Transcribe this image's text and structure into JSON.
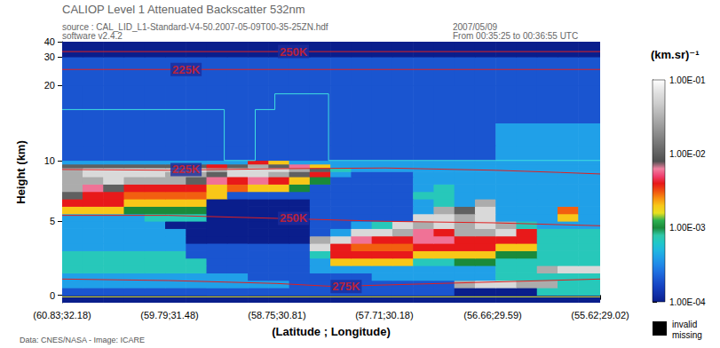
{
  "chart_data": {
    "type": "heatmap",
    "title": "CALIOP Level 1 Attenuated Backscatter 532nm",
    "header": [
      "source : CAL_LID_L1-Standard-V4-50.2007-05-09T00-35-25ZN.hdf",
      "software v2.4.2"
    ],
    "header_right": [
      "2007/05/09",
      "From 00:35:25 to 00:36:55 UTC"
    ],
    "footer": "Data: CNES/NASA - Image: ICARE",
    "x_label": "(Latitude ; Longitude)",
    "y_label": "Height (km)",
    "xlim": [
      60.83,
      55.62
    ],
    "xticks": [
      {
        "value": 60.83,
        "label": "(60.83;32.18)"
      },
      {
        "value": 59.79,
        "label": "(59.79;31.48)"
      },
      {
        "value": 58.75,
        "label": "(58.75;30.81)"
      },
      {
        "value": 57.71,
        "label": "(57.71;30.18)"
      },
      {
        "value": 56.66,
        "label": "(56.66;29.59)"
      },
      {
        "value": 55.62,
        "label": "(55.62;29.02)"
      }
    ],
    "ylim": [
      -0.5,
      40
    ],
    "yticks": [
      0,
      5,
      10,
      20,
      30,
      40
    ],
    "x_edges": [
      60.83,
      60.63,
      60.43,
      60.23,
      60.03,
      59.83,
      59.63,
      59.43,
      59.23,
      59.03,
      58.83,
      58.63,
      58.43,
      58.23,
      58.03,
      57.83,
      57.63,
      57.43,
      57.23,
      57.03,
      56.83,
      56.63,
      56.43,
      56.23,
      56.03,
      55.83,
      55.62
    ],
    "y_edges": [
      -0.5,
      0,
      0.5,
      1,
      1.5,
      2,
      2.5,
      3,
      3.5,
      4,
      4.5,
      5,
      5.5,
      6,
      6.5,
      7,
      7.5,
      8,
      8.5,
      9,
      9.5,
      10,
      12,
      15,
      20,
      30,
      40
    ],
    "values": [
      [
        0.0001,
        0.0001,
        0.0001,
        0.0001,
        0.0001,
        0.0001,
        0.0001,
        0.0001,
        0.0001,
        0.0001,
        0.0001,
        0.0001,
        0.0001,
        0.0001,
        0.0001,
        0.0001,
        0.0001,
        0.0001,
        0.0001,
        0.0001,
        0.0001,
        0.0001,
        0.0001,
        0.0001,
        0.0001,
        0.0001
      ],
      [
        0.0002,
        0.0002,
        0.0002,
        0.0002,
        0.0002,
        0.0002,
        0.0002,
        0.0002,
        0.0002,
        0.0002,
        0.0002,
        0.0002,
        0.0002,
        0.0002,
        0.0002,
        0.0002,
        0.0002,
        0.0002,
        0.0002,
        0.0001,
        0.0001,
        0.0001,
        0.0001,
        0.0007,
        0.0007,
        0.0007
      ],
      [
        0.0004,
        0.0004,
        0.0004,
        0.0004,
        0.0004,
        0.0004,
        0.0004,
        0.0004,
        0.0004,
        0.0004,
        0.0004,
        0.0002,
        0.0002,
        0.0002,
        0.0002,
        0.0002,
        0.0002,
        0.0002,
        0.0002,
        0.03,
        0.06,
        0.06,
        0.03,
        0.03,
        0.0007,
        0.0007
      ],
      [
        0.0004,
        0.0004,
        0.0004,
        0.0004,
        0.0004,
        0.0004,
        0.0004,
        0.0004,
        0.0004,
        0.0002,
        0.0002,
        0.0002,
        0.0002,
        0.0002,
        0.0002,
        0.0004,
        0.0004,
        0.0004,
        0.0004,
        0.0004,
        0.0004,
        0.0007,
        0.0007,
        0.0007,
        0.0007,
        0.0007
      ],
      [
        0.0007,
        0.0007,
        0.0007,
        0.0007,
        0.0007,
        0.0007,
        0.0007,
        0.0002,
        0.0002,
        0.0002,
        0.0002,
        0.0002,
        0.0004,
        0.0004,
        0.0004,
        0.0004,
        0.0004,
        0.0004,
        0.0004,
        0.0004,
        0.0004,
        0.0007,
        0.0007,
        0.03,
        0.06,
        0.06
      ],
      [
        0.0007,
        0.0007,
        0.0007,
        0.0007,
        0.0007,
        0.0007,
        0.0007,
        0.0002,
        0.0002,
        0.0002,
        0.0002,
        0.0002,
        0.0004,
        0.002,
        0.002,
        0.002,
        0.002,
        0.0007,
        0.0007,
        0.001,
        0.001,
        0.0007,
        0.0007,
        0.0007,
        0.0007,
        0.0007
      ],
      [
        0.0007,
        0.0007,
        0.0007,
        0.0007,
        0.0007,
        0.0007,
        0.0002,
        0.0002,
        0.0002,
        0.0002,
        0.0002,
        0.0002,
        0.0007,
        0.004,
        0.004,
        0.004,
        0.004,
        0.002,
        0.002,
        0.002,
        0.002,
        0.001,
        0.001,
        0.0007,
        0.0007,
        0.0007
      ],
      [
        0.0004,
        0.0004,
        0.0004,
        0.0004,
        0.0004,
        0.0004,
        0.0002,
        0.0002,
        0.0002,
        0.0002,
        0.0002,
        0.0002,
        0.06,
        0.004,
        0.003,
        0.003,
        0.003,
        0.004,
        0.004,
        0.004,
        0.004,
        0.002,
        0.002,
        0.0007,
        0.0007,
        0.0007
      ],
      [
        0.0004,
        0.0004,
        0.0004,
        0.0004,
        0.0004,
        0.0004,
        0.0001,
        0.0001,
        0.0001,
        0.0001,
        0.0001,
        0.0001,
        0.03,
        0.06,
        0.006,
        0.004,
        0.004,
        0.006,
        0.006,
        0.004,
        0.004,
        0.004,
        0.004,
        0.0007,
        0.0007,
        0.0007
      ],
      [
        0.0004,
        0.0004,
        0.0004,
        0.0004,
        0.0004,
        0.0004,
        0.0001,
        0.0001,
        0.0001,
        0.0001,
        0.0001,
        0.0001,
        0.0002,
        0.0004,
        0.06,
        0.06,
        0.03,
        0.006,
        0.004,
        0.03,
        0.03,
        0.06,
        0.004,
        0.0007,
        0.0007,
        0.0007
      ],
      [
        0.0004,
        0.0004,
        0.0004,
        0.0004,
        0.0004,
        0.0001,
        0.0001,
        0.0001,
        0.0001,
        0.0001,
        0.0001,
        0.0001,
        0.0002,
        0.0002,
        0.0004,
        0.0007,
        0.06,
        0.03,
        0.06,
        0.03,
        0.06,
        0.03,
        0.0007,
        0.0004,
        0.0004,
        0.0004
      ],
      [
        0.0004,
        0.0004,
        0.0004,
        0.0004,
        0.0007,
        0.0007,
        0.0007,
        0.0001,
        0.0001,
        0.0001,
        0.0001,
        0.0001,
        0.0002,
        0.0002,
        0.0002,
        0.0002,
        0.0002,
        0.06,
        0.06,
        0.03,
        0.06,
        0.0004,
        0.0004,
        0.0004,
        0.002,
        0.0004
      ],
      [
        0.002,
        0.002,
        0.002,
        0.001,
        0.001,
        0.001,
        0.001,
        0.0001,
        0.0001,
        0.0001,
        0.0001,
        0.0001,
        0.0002,
        0.0002,
        0.0002,
        0.0002,
        0.0002,
        0.0004,
        0.03,
        0.01,
        0.06,
        0.0004,
        0.0004,
        0.0004,
        0.003,
        0.0004
      ],
      [
        0.004,
        0.004,
        0.004,
        0.002,
        0.002,
        0.002,
        0.002,
        0.0001,
        0.0001,
        0.0001,
        0.0001,
        0.0001,
        0.0002,
        0.0002,
        0.0002,
        0.0002,
        0.0002,
        0.0004,
        0.0007,
        0.0004,
        0.03,
        0.0004,
        0.0004,
        0.0004,
        0.0004,
        0.0004
      ],
      [
        0.01,
        0.004,
        0.004,
        0.003,
        0.003,
        0.003,
        0.003,
        0.002,
        0.0002,
        0.0002,
        0.0002,
        0.0002,
        0.0002,
        0.0002,
        0.0002,
        0.0002,
        0.0002,
        0.0007,
        0.0007,
        0.0004,
        0.0004,
        0.0004,
        0.0004,
        0.0004,
        0.0004,
        0.0004
      ],
      [
        0.03,
        0.006,
        0.01,
        0.004,
        0.004,
        0.004,
        0.004,
        0.002,
        0.003,
        0.002,
        0.002,
        0.001,
        0.0002,
        0.0002,
        0.0002,
        0.0002,
        0.0002,
        0.0004,
        0.0007,
        0.0004,
        0.0004,
        0.0004,
        0.0004,
        0.0004,
        0.0004,
        0.0004
      ],
      [
        0.03,
        0.03,
        0.06,
        0.03,
        0.03,
        0.03,
        0.01,
        0.006,
        0.004,
        0.006,
        0.004,
        0.002,
        0.001,
        0.0002,
        0.0002,
        0.0002,
        0.0002,
        0.0004,
        0.0004,
        0.0004,
        0.0004,
        0.0004,
        0.0004,
        0.0004,
        0.0004,
        0.0004
      ],
      [
        0.03,
        0.06,
        0.06,
        0.06,
        0.06,
        0.03,
        0.03,
        0.01,
        0.06,
        0.06,
        0.03,
        0.01,
        0.004,
        0.0004,
        0.0002,
        0.0002,
        0.0002,
        0.0004,
        0.0004,
        0.0004,
        0.0004,
        0.0004,
        0.0004,
        0.0004,
        0.0004,
        0.0004
      ],
      [
        0.03,
        0.06,
        0.06,
        0.06,
        0.06,
        0.06,
        0.06,
        0.03,
        0.06,
        0.06,
        0.06,
        0.03,
        0.01,
        0.0007,
        0.0004,
        0.0004,
        0.0004,
        0.0004,
        0.0004,
        0.0004,
        0.0004,
        0.0004,
        0.0004,
        0.0004,
        0.0004,
        0.0004
      ],
      [
        0.01,
        0.01,
        0.01,
        0.01,
        0.01,
        0.01,
        0.01,
        0.004,
        0.01,
        0.03,
        0.01,
        0.006,
        0.002,
        0.0004,
        0.0004,
        0.0004,
        0.0004,
        0.0004,
        0.0004,
        0.0004,
        0.0004,
        0.0004,
        0.0004,
        0.0004,
        0.0004,
        0.0004
      ],
      [
        0.0004,
        0.0004,
        0.0004,
        0.0004,
        0.0004,
        0.0004,
        0.0004,
        0.0004,
        0.0004,
        0.004,
        0.002,
        0.0004,
        0.0004,
        0.0004,
        0.0004,
        0.0004,
        0.0004,
        0.0004,
        0.0004,
        0.0004,
        0.0004,
        0.0004,
        0.0004,
        0.0004,
        0.0004,
        0.0004
      ],
      [
        0.0002,
        0.0002,
        0.0002,
        0.0002,
        0.0002,
        0.0002,
        0.0002,
        0.0002,
        0.0002,
        0.0002,
        0.0002,
        0.0002,
        0.0002,
        0.0002,
        0.0002,
        0.0002,
        0.0002,
        0.0002,
        0.0002,
        0.0002,
        0.0002,
        0.0004,
        0.0004,
        0.0004,
        0.0004,
        0.0004
      ],
      [
        0.0002,
        0.0002,
        0.0002,
        0.0002,
        0.0002,
        0.0002,
        0.0002,
        0.0002,
        0.0002,
        0.0002,
        0.0002,
        0.0002,
        0.0002,
        0.0002,
        0.0002,
        0.0002,
        0.0002,
        0.0002,
        0.0002,
        0.0002,
        0.0002,
        0.0004,
        0.0004,
        0.0004,
        0.0004,
        0.0004
      ],
      [
        0.0002,
        0.0002,
        0.0002,
        0.0002,
        0.0002,
        0.0002,
        0.0002,
        0.0002,
        0.0002,
        0.0002,
        0.0002,
        0.0002,
        0.0002,
        0.0002,
        0.0002,
        0.0002,
        0.0002,
        0.0002,
        0.0002,
        0.0002,
        0.0002,
        0.0002,
        0.0002,
        0.0002,
        0.0002,
        0.0002
      ],
      [
        0.0002,
        0.0002,
        0.0002,
        0.0002,
        0.0002,
        0.0002,
        0.0002,
        0.0002,
        0.0002,
        0.0002,
        0.0002,
        0.0002,
        0.0002,
        0.0002,
        0.0002,
        0.0002,
        0.0002,
        0.0002,
        0.0002,
        0.0002,
        0.0002,
        0.0002,
        0.0002,
        0.0002,
        0.0002,
        0.0002
      ],
      [
        0.0001,
        0.0001,
        0.0001,
        0.0001,
        0.0001,
        0.0001,
        0.0001,
        0.0001,
        0.0001,
        0.0001,
        0.0001,
        0.0001,
        0.0001,
        0.0001,
        0.0001,
        0.0001,
        0.0001,
        0.0001,
        0.0001,
        0.0001,
        0.0001,
        0.0001,
        0.0001,
        0.0001,
        0.0001,
        0.0001
      ]
    ],
    "colorbar": {
      "label": "(km.sr)⁻¹",
      "range": [
        0.0001,
        0.1
      ],
      "log": true,
      "ticks": [
        {
          "value": 0.1,
          "label": "1.00E-01"
        },
        {
          "value": 0.01,
          "label": "1.00E-02"
        },
        {
          "value": 0.001,
          "label": "1.00E-03"
        },
        {
          "value": 0.0001,
          "label": "1.00E-04"
        }
      ]
    },
    "missing_key": {
      "color": "#000000",
      "labels": [
        "invalid",
        "missing"
      ]
    },
    "lines": [
      {
        "color": "#e02020",
        "x": [
          60.83,
          55.62
        ],
        "y": [
          33.5,
          33.5
        ]
      },
      {
        "color": "#e02020",
        "x": [
          60.83,
          55.62
        ],
        "y": [
          25.5,
          25.5
        ]
      },
      {
        "color": "#e02020",
        "x": [
          60.83,
          59.8,
          58.75,
          57.7,
          56.66,
          56.0,
          55.62
        ],
        "y": [
          8.8,
          8.7,
          8.9,
          9.0,
          8.7,
          8.4,
          8.2
        ]
      },
      {
        "color": "#e02020",
        "x": [
          60.83,
          59.8,
          58.75,
          57.7,
          56.66,
          55.62
        ],
        "y": [
          5.4,
          5.4,
          5.2,
          5.0,
          4.9,
          4.7
        ]
      },
      {
        "color": "#e02020",
        "x": [
          60.83,
          59.8,
          58.75,
          58.2,
          57.7,
          56.66,
          55.62
        ],
        "y": [
          1.1,
          1.0,
          0.8,
          0.6,
          0.7,
          0.9,
          1.1
        ]
      },
      {
        "color": "#40e0e0",
        "x": [
          60.83,
          59.26,
          59.26,
          58.96,
          58.96,
          58.77,
          58.77,
          58.25,
          58.25,
          55.62
        ],
        "y": [
          16.8,
          16.8,
          10,
          10,
          16.8,
          16.8,
          18.9,
          18.9,
          10,
          10
        ]
      },
      {
        "color": "#f0f020",
        "x": [
          60.83,
          55.62
        ],
        "y": [
          -0.1,
          -0.1
        ]
      }
    ],
    "annotations": [
      {
        "text": "250K",
        "x": 58.59,
        "y": 33.5,
        "color": "#e02020"
      },
      {
        "text": "225K",
        "x": 59.63,
        "y": 25.5,
        "color": "#e02020"
      },
      {
        "text": "225K",
        "x": 59.63,
        "y": 8.8,
        "color": "#e02020"
      },
      {
        "text": "250K",
        "x": 58.59,
        "y": 5.2,
        "color": "#e02020"
      },
      {
        "text": "275K",
        "x": 58.08,
        "y": 0.6,
        "color": "#e02020"
      }
    ]
  }
}
